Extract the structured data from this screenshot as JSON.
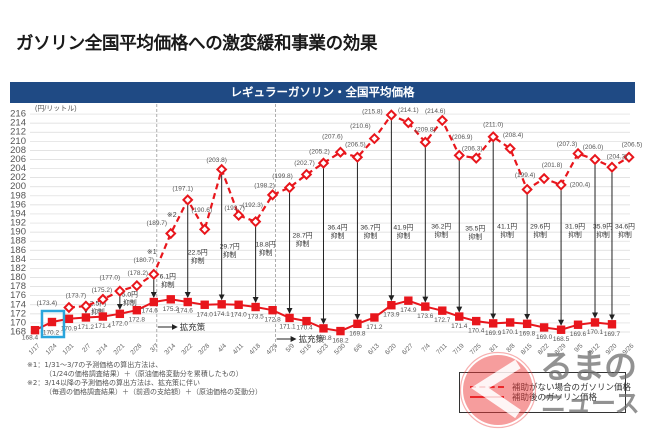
{
  "page": {
    "title": "ガソリン全国平均価格への激変緩和事業の効果",
    "header": "レギュラーガソリン・全国平均価格"
  },
  "chart_data": {
    "type": "line",
    "title": "レギュラーガソリン・全国平均価格",
    "xlabel": "",
    "ylabel": "(円/リットル)",
    "ylim": [
      168,
      216
    ],
    "grid": true,
    "y_ticks": [
      168,
      170,
      172,
      174,
      176,
      178,
      180,
      182,
      184,
      186,
      188,
      190,
      192,
      194,
      196,
      198,
      200,
      202,
      204,
      206,
      208,
      210,
      212,
      214,
      216
    ],
    "categories": [
      "1/17",
      "1/24",
      "1/31",
      "2/7",
      "2/14",
      "2/21",
      "2/28",
      "3/7",
      "3/14",
      "3/22",
      "3/28",
      "4/4",
      "4/11",
      "4/18",
      "4/25",
      "5/9",
      "5/16",
      "5/23",
      "5/30",
      "6/6",
      "6/13",
      "6/20",
      "6/27",
      "7/4",
      "7/11",
      "7/19",
      "7/25",
      "8/1",
      "8/8",
      "8/15",
      "8/22",
      "8/29",
      "9/5",
      "9/12",
      "9/20",
      "9/26"
    ],
    "series": [
      {
        "name": "補助がない場合のガソリン価格",
        "style": "dashed",
        "marker": "diamond",
        "color": "#e8161c",
        "values": [
          null,
          null,
          173.4,
          173.7,
          175.2,
          177.0,
          178.2,
          180.7,
          189.7,
          197.1,
          190.6,
          203.8,
          193.7,
          192.3,
          198.2,
          199.8,
          202.7,
          205.2,
          207.6,
          206.5,
          210.6,
          215.8,
          214.1,
          209.8,
          214.6,
          206.9,
          206.3,
          211.0,
          208.4,
          199.4,
          201.8,
          200.4,
          207.3,
          206.0,
          204.3,
          206.5
        ],
        "data_labels": [
          null,
          null,
          "(173.4)",
          "(173.7)",
          "(175.2)",
          "(177.0)",
          "(178.2)",
          "(180.7)",
          "(189.7)",
          "(197.1)",
          "(190.6)",
          "(203.8)",
          "(193.7)",
          "(192.3)",
          "(198.2)",
          "(199.8)",
          "(202.7)",
          "(205.2)",
          "(207.6)",
          "(206.5)",
          "(210.6)",
          "(215.8)",
          "(214.1)",
          "(209.8)",
          "(214.6)",
          "(206.9)",
          "(206.3)",
          "(211.0)",
          "(208.4)",
          "(199.4)",
          "(201.8)",
          "(200.4)",
          "(207.3)",
          "(206.0)",
          "(204.3)",
          "(206.5)"
        ]
      },
      {
        "name": "補助後のガソリン価格",
        "style": "solid",
        "marker": "square",
        "color": "#e8161c",
        "values": [
          168.4,
          170.2,
          170.9,
          171.2,
          171.4,
          172.0,
          172.8,
          174.6,
          175.2,
          174.6,
          174.0,
          174.1,
          174.0,
          173.5,
          172.8,
          171.1,
          170.4,
          168.8,
          168.2,
          169.8,
          171.2,
          173.9,
          174.9,
          173.6,
          172.7,
          171.4,
          170.4,
          169.9,
          170.1,
          169.8,
          169.0,
          168.5,
          169.6,
          170.1,
          169.7,
          null
        ],
        "data_labels": [
          "168.4",
          "170.2",
          "170.9",
          "171.2",
          "171.4",
          "172.0",
          "172.8",
          "174.6",
          "175.2",
          "174.6",
          "174.0",
          "174.1",
          "174.0",
          "173.5",
          "172.8",
          "171.1",
          "170.4",
          "168.8",
          "168.2",
          "169.8",
          "171.2",
          "173.9",
          "174.9",
          "173.6",
          "172.7",
          "171.4",
          "170.4",
          "169.9",
          "170.1",
          "169.8",
          "169.0",
          "168.5",
          "169.6",
          "170.1",
          "169.7",
          null
        ]
      }
    ],
    "annotations": {
      "suppression": [
        {
          "date": "2/7",
          "amount": "2.5円",
          "label": "抑制"
        },
        {
          "date": "2/21",
          "amount": "5.0円",
          "label": "抑制"
        },
        {
          "date": "3/7",
          "amount": "6.1円",
          "label": "抑制"
        },
        {
          "date": "3/22",
          "amount": "22.5円",
          "label": "抑制"
        },
        {
          "date": "4/4",
          "amount": "29.7円",
          "label": "抑制"
        },
        {
          "date": "4/18",
          "amount": "18.8円",
          "label": "抑制"
        },
        {
          "date": "5/9",
          "amount": "28.7円",
          "label": "抑制"
        },
        {
          "date": "5/23",
          "amount": "36.4円",
          "label": "抑制"
        },
        {
          "date": "6/6",
          "amount": "36.7円",
          "label": "抑制"
        },
        {
          "date": "6/20",
          "amount": "41.9円",
          "label": "抑制"
        },
        {
          "date": "7/4",
          "amount": "36.2円",
          "label": "抑制"
        },
        {
          "date": "7/19",
          "amount": "35.5円",
          "label": "抑制"
        },
        {
          "date": "8/1",
          "amount": "41.1円",
          "label": "抑制"
        },
        {
          "date": "8/15",
          "amount": "29.6円",
          "label": "抑制"
        },
        {
          "date": "8/29",
          "amount": "31.9円",
          "label": "抑制"
        },
        {
          "date": "9/12",
          "amount": "35.9円",
          "label": "抑制"
        },
        {
          "date": "9/20",
          "amount": "34.6円",
          "label": "抑制"
        }
      ],
      "note_markers": [
        {
          "date": "3/7",
          "text": "※1"
        },
        {
          "date": "3/14",
          "text": "※2"
        }
      ],
      "expansion": [
        {
          "after": "3/7",
          "text": "拡充策"
        },
        {
          "after": "4/25",
          "text": "拡充策"
        }
      ],
      "highlight": {
        "date": "1/24",
        "color": "#2aa5dc"
      }
    },
    "legend": {
      "position": "bottom-right",
      "entries": [
        {
          "label": "補助がない場合のガソリン価格",
          "style": "dashed",
          "color": "#e8161c"
        },
        {
          "label": "補助後のガソリン価格",
          "style": "solid",
          "color": "#e8161c"
        }
      ]
    }
  },
  "notes": [
    "※1：1/31～3/7の予測価格の算出方法は、",
    "（1/24の価格調査結果）＋（原油価格変動分を累積したもの）",
    "※2：3/14以降の予測価格の算出方法は、拡充策に伴い",
    "（毎週の価格調査結果）＋（前週の支給額）＋（原油価格の変動分）"
  ],
  "watermark": {
    "icon": "chevron-left-circle",
    "brand_line1": "るまの",
    "brand_line2": "ニュース"
  }
}
